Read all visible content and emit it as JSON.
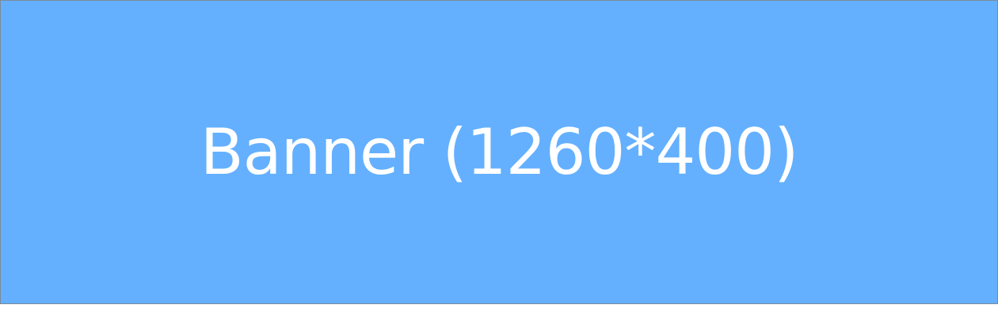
{
  "banner": {
    "label": "Banner (1260*400)",
    "background_color": "#64b0ff",
    "text_color": "#ffffff"
  }
}
